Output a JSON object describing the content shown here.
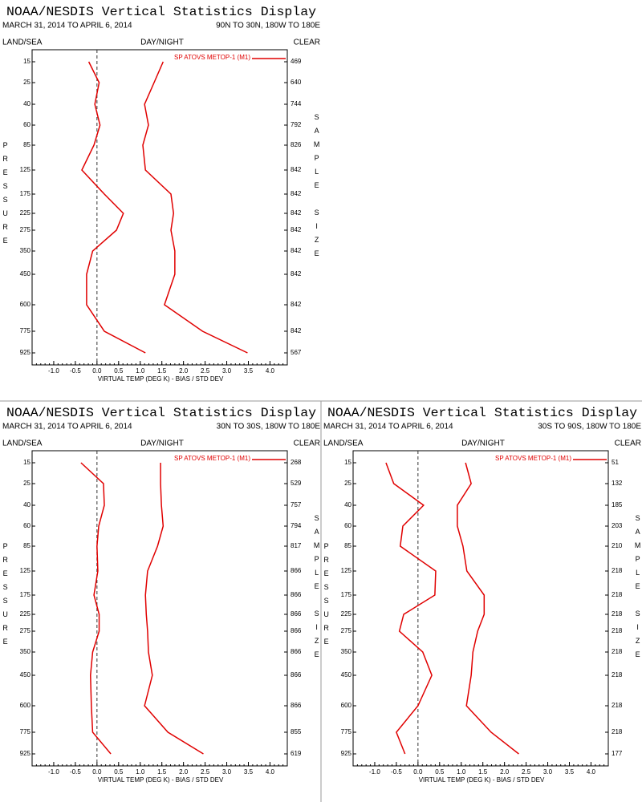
{
  "chart_data": [
    {
      "type": "line",
      "title": "NOAA/NESDIS Vertical Statistics Display",
      "date_range": "MARCH 31, 2014 TO APRIL 6, 2014",
      "region": "90N TO 30N, 180W TO 180E",
      "land_sea": "LAND/SEA",
      "day_night": "DAY/NIGHT",
      "sky": "CLEAR",
      "ylabel": "PRESSURE",
      "y2label": "SAMPLE SIZE",
      "xlabel": "VIRTUAL TEMP (DEG K) - BIAS / STD DEV",
      "categories": [
        "15",
        "25",
        "40",
        "60",
        "85",
        "125",
        "175",
        "225",
        "275",
        "350",
        "450",
        "600",
        "775",
        "925"
      ],
      "sample_size": [
        469,
        640,
        744,
        792,
        826,
        842,
        842,
        842,
        842,
        842,
        842,
        842,
        842,
        567
      ],
      "xlim": [
        -1.5,
        4.4
      ],
      "xticks": [
        {
          "value": -1,
          "label": "-1.0"
        },
        -0.5,
        {
          "value": 0,
          "label": "0.0"
        },
        0.5,
        {
          "value": 1,
          "label": "1.0"
        },
        1.5,
        {
          "value": 2,
          "label": "2.0"
        },
        2.5,
        {
          "value": 3,
          "label": "3.0"
        },
        3.5,
        {
          "value": 4,
          "label": "4.0"
        }
      ],
      "series": [
        {
          "name": "SP ATOVS METOP-1 (M1)",
          "color": "#e00000",
          "bias": [
            -0.19,
            0.05,
            -0.05,
            0.07,
            -0.07,
            -0.35,
            0.17,
            0.61,
            0.45,
            -0.1,
            -0.24,
            -0.24,
            0.17,
            1.12
          ],
          "std_dev": [
            1.53,
            1.32,
            1.1,
            1.19,
            1.06,
            1.12,
            1.71,
            1.77,
            1.71,
            1.8,
            1.8,
            1.56,
            2.44,
            3.48
          ]
        }
      ]
    },
    {
      "type": "line",
      "title": "NOAA/NESDIS Vertical Statistics Display",
      "date_range": "MARCH 31, 2014 TO APRIL 6, 2014",
      "region": "30N TO 30S, 180W TO 180E",
      "land_sea": "LAND/SEA",
      "day_night": "DAY/NIGHT",
      "sky": "CLEAR",
      "ylabel": "PRESSURE",
      "y2label": "SAMPLE SIZE",
      "xlabel": "VIRTUAL TEMP (DEG K) - BIAS / STD DEV",
      "categories": [
        "15",
        "25",
        "40",
        "60",
        "85",
        "125",
        "175",
        "225",
        "275",
        "350",
        "450",
        "600",
        "775",
        "925"
      ],
      "sample_size": [
        268,
        529,
        757,
        794,
        817,
        866,
        866,
        866,
        866,
        866,
        866,
        866,
        855,
        619
      ],
      "xlim": [
        -1.5,
        4.4
      ],
      "xticks": [
        {
          "value": -1,
          "label": "-1.0"
        },
        -0.5,
        {
          "value": 0,
          "label": "0.0"
        },
        0.5,
        {
          "value": 1,
          "label": "1.0"
        },
        1.5,
        {
          "value": 2,
          "label": "2.0"
        },
        2.5,
        {
          "value": 3,
          "label": "3.0"
        },
        3.5,
        {
          "value": 4,
          "label": "4.0"
        }
      ],
      "series": [
        {
          "name": "SP ATOVS METOP-1 (M1)",
          "color": "#e00000",
          "bias": [
            -0.37,
            0.15,
            0.17,
            0.04,
            0,
            0.02,
            -0.07,
            0.05,
            0.05,
            -0.1,
            -0.15,
            -0.13,
            -0.1,
            0.32
          ],
          "std_dev": [
            1.47,
            1.47,
            1.49,
            1.53,
            1.4,
            1.17,
            1.12,
            1.14,
            1.17,
            1.19,
            1.28,
            1.1,
            1.64,
            2.46
          ]
        }
      ]
    },
    {
      "type": "line",
      "title": "NOAA/NESDIS Vertical Statistics Display",
      "date_range": "MARCH 31, 2014 TO APRIL 6, 2014",
      "region": "30S TO 90S, 180W TO 180E",
      "land_sea": "LAND/SEA",
      "day_night": "DAY/NIGHT",
      "sky": "CLEAR",
      "ylabel": "PRESSURE",
      "y2label": "SAMPLE SIZE",
      "xlabel": "VIRTUAL TEMP (DEG K) - BIAS / STD DEV",
      "categories": [
        "15",
        "25",
        "40",
        "60",
        "85",
        "125",
        "175",
        "225",
        "275",
        "350",
        "450",
        "600",
        "775",
        "925"
      ],
      "sample_size": [
        51,
        132,
        185,
        203,
        210,
        218,
        218,
        218,
        218,
        218,
        218,
        218,
        218,
        177
      ],
      "xlim": [
        -1.5,
        4.4
      ],
      "xticks": [
        {
          "value": -1,
          "label": "-1.0"
        },
        -0.5,
        {
          "value": 0,
          "label": "0.0"
        },
        0.5,
        {
          "value": 1,
          "label": "1.0"
        },
        1.5,
        {
          "value": 2,
          "label": "2.0"
        },
        2.5,
        {
          "value": 3,
          "label": "3.0"
        },
        3.5,
        {
          "value": 4,
          "label": "4.0"
        }
      ],
      "series": [
        {
          "name": "SP ATOVS METOP-1 (M1)",
          "color": "#e00000",
          "bias": [
            -0.74,
            -0.56,
            0.13,
            -0.35,
            -0.41,
            0.41,
            0.39,
            -0.33,
            -0.43,
            0.11,
            0.32,
            0,
            -0.5,
            -0.3
          ],
          "std_dev": [
            1.1,
            1.23,
            0.91,
            0.91,
            1.04,
            1.13,
            1.53,
            1.53,
            1.38,
            1.27,
            1.23,
            1.12,
            1.69,
            2.33
          ]
        }
      ]
    }
  ]
}
